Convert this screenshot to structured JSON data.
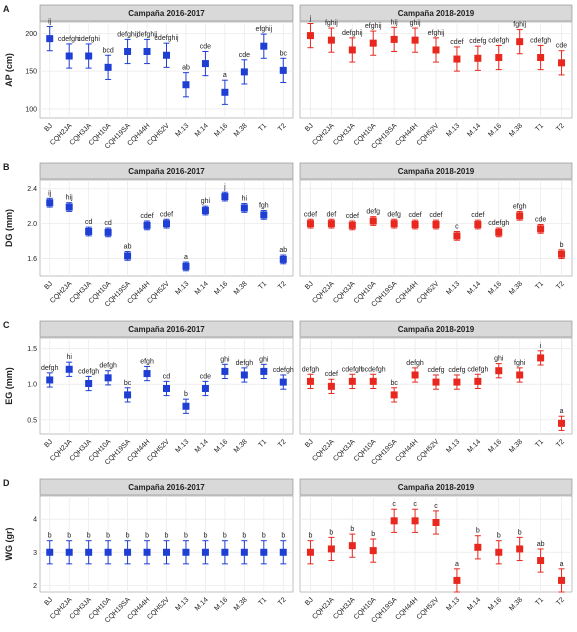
{
  "chart_data": [
    {
      "type": "errorbar",
      "label": "A",
      "ylabel": "AP (cm)",
      "title": "Campaña 2016-2017",
      "color": "#1f3fd4",
      "ylim": [
        88,
        215
      ],
      "yticks": [
        100,
        150,
        200
      ],
      "grid": true,
      "categories": [
        "BJ",
        "CQH2JA",
        "CQH3JA",
        "CQH10A",
        "CQH19SA",
        "CQH44H",
        "CQH52V",
        "M.13",
        "M.14",
        "M.16",
        "M.38",
        "T1",
        "T2"
      ],
      "values": [
        193,
        170,
        170,
        155,
        176,
        176,
        171,
        132,
        160,
        122,
        149,
        183,
        151
      ],
      "errors": [
        16,
        16,
        16,
        16,
        16,
        16,
        16,
        16,
        16,
        16,
        16,
        16,
        16
      ],
      "annotations": [
        "ij",
        "cdefghi",
        "cdefghi",
        "bcd",
        "defghij",
        "defghij",
        "cdefghij",
        "ab",
        "cde",
        "a",
        "cde",
        "efghij",
        "bc"
      ]
    },
    {
      "type": "errorbar",
      "title": "Campaña 2018-2019",
      "color": "#e8281e",
      "categories": [
        "BJ",
        "CQH2JA",
        "CQH3JA",
        "CQH10A",
        "CQH19SA",
        "CQH44H",
        "CQH52V",
        "M.13",
        "M.14",
        "M.16",
        "M.38",
        "T1",
        "T2"
      ],
      "values": [
        197,
        191,
        178,
        187,
        192,
        191,
        178,
        166,
        167,
        168,
        189,
        168,
        161
      ],
      "errors": [
        16,
        16,
        16,
        16,
        16,
        16,
        16,
        16,
        16,
        16,
        16,
        16,
        16
      ],
      "annotations": [
        "j",
        "fghij",
        "defghij",
        "efghij",
        "hij",
        "ghij",
        "efghij",
        "cdef",
        "cdefg",
        "cdefgh",
        "fghij",
        "cdefgh",
        "cde"
      ]
    },
    {
      "type": "errorbar",
      "label": "B",
      "ylabel": "DG (mm)",
      "title": "Campaña 2016-2017",
      "color": "#1f3fd4",
      "ylim": [
        1.4,
        2.5
      ],
      "yticks": [
        1.6,
        {
          "value": 2,
          "label": "2.0"
        },
        2.4
      ],
      "grid": true,
      "categories": [
        "BJ",
        "CQH2JA",
        "CQH3JA",
        "CQH10A",
        "CQH19SA",
        "CQH44H",
        "CQH52V",
        "M.13",
        "M.14",
        "M.16",
        "M.38",
        "T1",
        "T2"
      ],
      "values": [
        2.24,
        2.19,
        1.91,
        1.9,
        1.63,
        1.98,
        2.0,
        1.51,
        2.15,
        2.31,
        2.18,
        2.1,
        1.59
      ],
      "errors": [
        0.05,
        0.05,
        0.05,
        0.05,
        0.05,
        0.05,
        0.05,
        0.05,
        0.05,
        0.05,
        0.05,
        0.05,
        0.05
      ],
      "annotations": [
        "ij",
        "hij",
        "cd",
        "cd",
        "ab",
        "cdef",
        "cdef",
        "a",
        "ghi",
        "j",
        "hi",
        "fgh",
        "ab"
      ]
    },
    {
      "type": "errorbar",
      "title": "Campaña 2018-2019",
      "color": "#e8281e",
      "categories": [
        "BJ",
        "CQH2JA",
        "CQH3JA",
        "CQH10A",
        "CQH19SA",
        "CQH44H",
        "CQH52V",
        "M.13",
        "M.14",
        "M.16",
        "M.38",
        "T1",
        "T2"
      ],
      "values": [
        2.0,
        2.0,
        1.98,
        2.03,
        2.0,
        1.99,
        1.99,
        1.86,
        1.99,
        1.9,
        2.09,
        1.94,
        1.65
      ],
      "errors": [
        0.05,
        0.05,
        0.05,
        0.05,
        0.05,
        0.05,
        0.05,
        0.05,
        0.05,
        0.05,
        0.05,
        0.05,
        0.05
      ],
      "annotations": [
        "cdef",
        "def",
        "cdef",
        "defg",
        "defg",
        "cdef",
        "cdef",
        "c",
        "cdef",
        "cdefgh",
        "efgh",
        "cde",
        "b"
      ]
    },
    {
      "type": "errorbar",
      "label": "C",
      "ylabel": "EG (mm)",
      "title": "Campaña 2016-2017",
      "color": "#1f3fd4",
      "ylim": [
        0.3,
        1.65
      ],
      "yticks": [
        0.5,
        {
          "value": 1,
          "label": "1.0"
        },
        1.5
      ],
      "grid": true,
      "categories": [
        "BJ",
        "CQH2JA",
        "CQH3JA",
        "CQH10A",
        "CQH19SA",
        "CQH44H",
        "CQH52V",
        "M.13",
        "M.14",
        "M.16",
        "M.38",
        "T1",
        "T2"
      ],
      "values": [
        1.06,
        1.21,
        1.01,
        1.09,
        0.85,
        1.15,
        0.94,
        0.69,
        0.94,
        1.18,
        1.13,
        1.18,
        1.03
      ],
      "errors": [
        0.1,
        0.1,
        0.1,
        0.1,
        0.1,
        0.1,
        0.1,
        0.1,
        0.1,
        0.1,
        0.1,
        0.1,
        0.1
      ],
      "annotations": [
        "defgh",
        "hi",
        "cdefgh",
        "defgh",
        "bc",
        "efgh",
        "cd",
        "b",
        "cde",
        "ghi",
        "defgh",
        "ghi",
        "cdefgh"
      ]
    },
    {
      "type": "errorbar",
      "title": "Campaña 2018-2019",
      "color": "#e8281e",
      "categories": [
        "BJ",
        "CQH2JA",
        "CQH3JA",
        "CQH10A",
        "CQH19SA",
        "CQH44H",
        "CQH52V",
        "M.13",
        "M.14",
        "M.16",
        "M.38",
        "T1",
        "T2"
      ],
      "values": [
        1.04,
        0.97,
        1.04,
        1.04,
        0.85,
        1.13,
        1.03,
        1.03,
        1.04,
        1.19,
        1.13,
        1.37,
        0.45
      ],
      "errors": [
        0.1,
        0.1,
        0.1,
        0.1,
        0.1,
        0.1,
        0.1,
        0.1,
        0.1,
        0.1,
        0.1,
        0.1,
        0.1
      ],
      "annotations": [
        "defgh",
        "cdef",
        "cdefgh",
        "bcdefgh",
        "bc",
        "defgh",
        "cdefg",
        "cdefg",
        "cdefgh",
        "ghi",
        "fghi",
        "i",
        "a"
      ]
    },
    {
      "type": "errorbar",
      "label": "D",
      "ylabel": "WG (gr)",
      "title": "Campaña 2016-2017",
      "color": "#1f3fd4",
      "ylim": [
        1.8,
        4.7
      ],
      "yticks": [
        2,
        3,
        4
      ],
      "grid": true,
      "categories": [
        "BJ",
        "CQH2JA",
        "CQH3JA",
        "CQH10A",
        "CQH19SA",
        "CQH44H",
        "CQH52V",
        "M.13",
        "M.14",
        "M.16",
        "M.38",
        "T1",
        "T2"
      ],
      "values": [
        3,
        3,
        3,
        3,
        3,
        3,
        3,
        3,
        3,
        3,
        3,
        3,
        3
      ],
      "errors": [
        0.35,
        0.35,
        0.35,
        0.35,
        0.35,
        0.35,
        0.35,
        0.35,
        0.35,
        0.35,
        0.35,
        0.35,
        0.35
      ],
      "annotations": [
        "b",
        "b",
        "b",
        "b",
        "b",
        "b",
        "b",
        "b",
        "b",
        "b",
        "b",
        "b",
        "b"
      ]
    },
    {
      "type": "errorbar",
      "title": "Campaña 2018-2019",
      "color": "#e8281e",
      "categories": [
        "BJ",
        "CQH2JA",
        "CQH3JA",
        "CQH10A",
        "CQH19SA",
        "CQH44H",
        "CQH52V",
        "M.13",
        "M.14",
        "M.16",
        "M.38",
        "T1",
        "T2"
      ],
      "values": [
        3.0,
        3.1,
        3.2,
        3.05,
        3.95,
        3.95,
        3.9,
        2.15,
        3.15,
        3.0,
        3.1,
        2.75,
        2.15
      ],
      "errors": [
        0.35,
        0.35,
        0.35,
        0.35,
        0.35,
        0.35,
        0.35,
        0.35,
        0.35,
        0.35,
        0.35,
        0.35,
        0.35
      ],
      "annotations": [
        "b",
        "b",
        "b",
        "b",
        "c",
        "c",
        "c",
        "a",
        "b",
        "b",
        "b",
        "ab",
        "a"
      ]
    }
  ]
}
